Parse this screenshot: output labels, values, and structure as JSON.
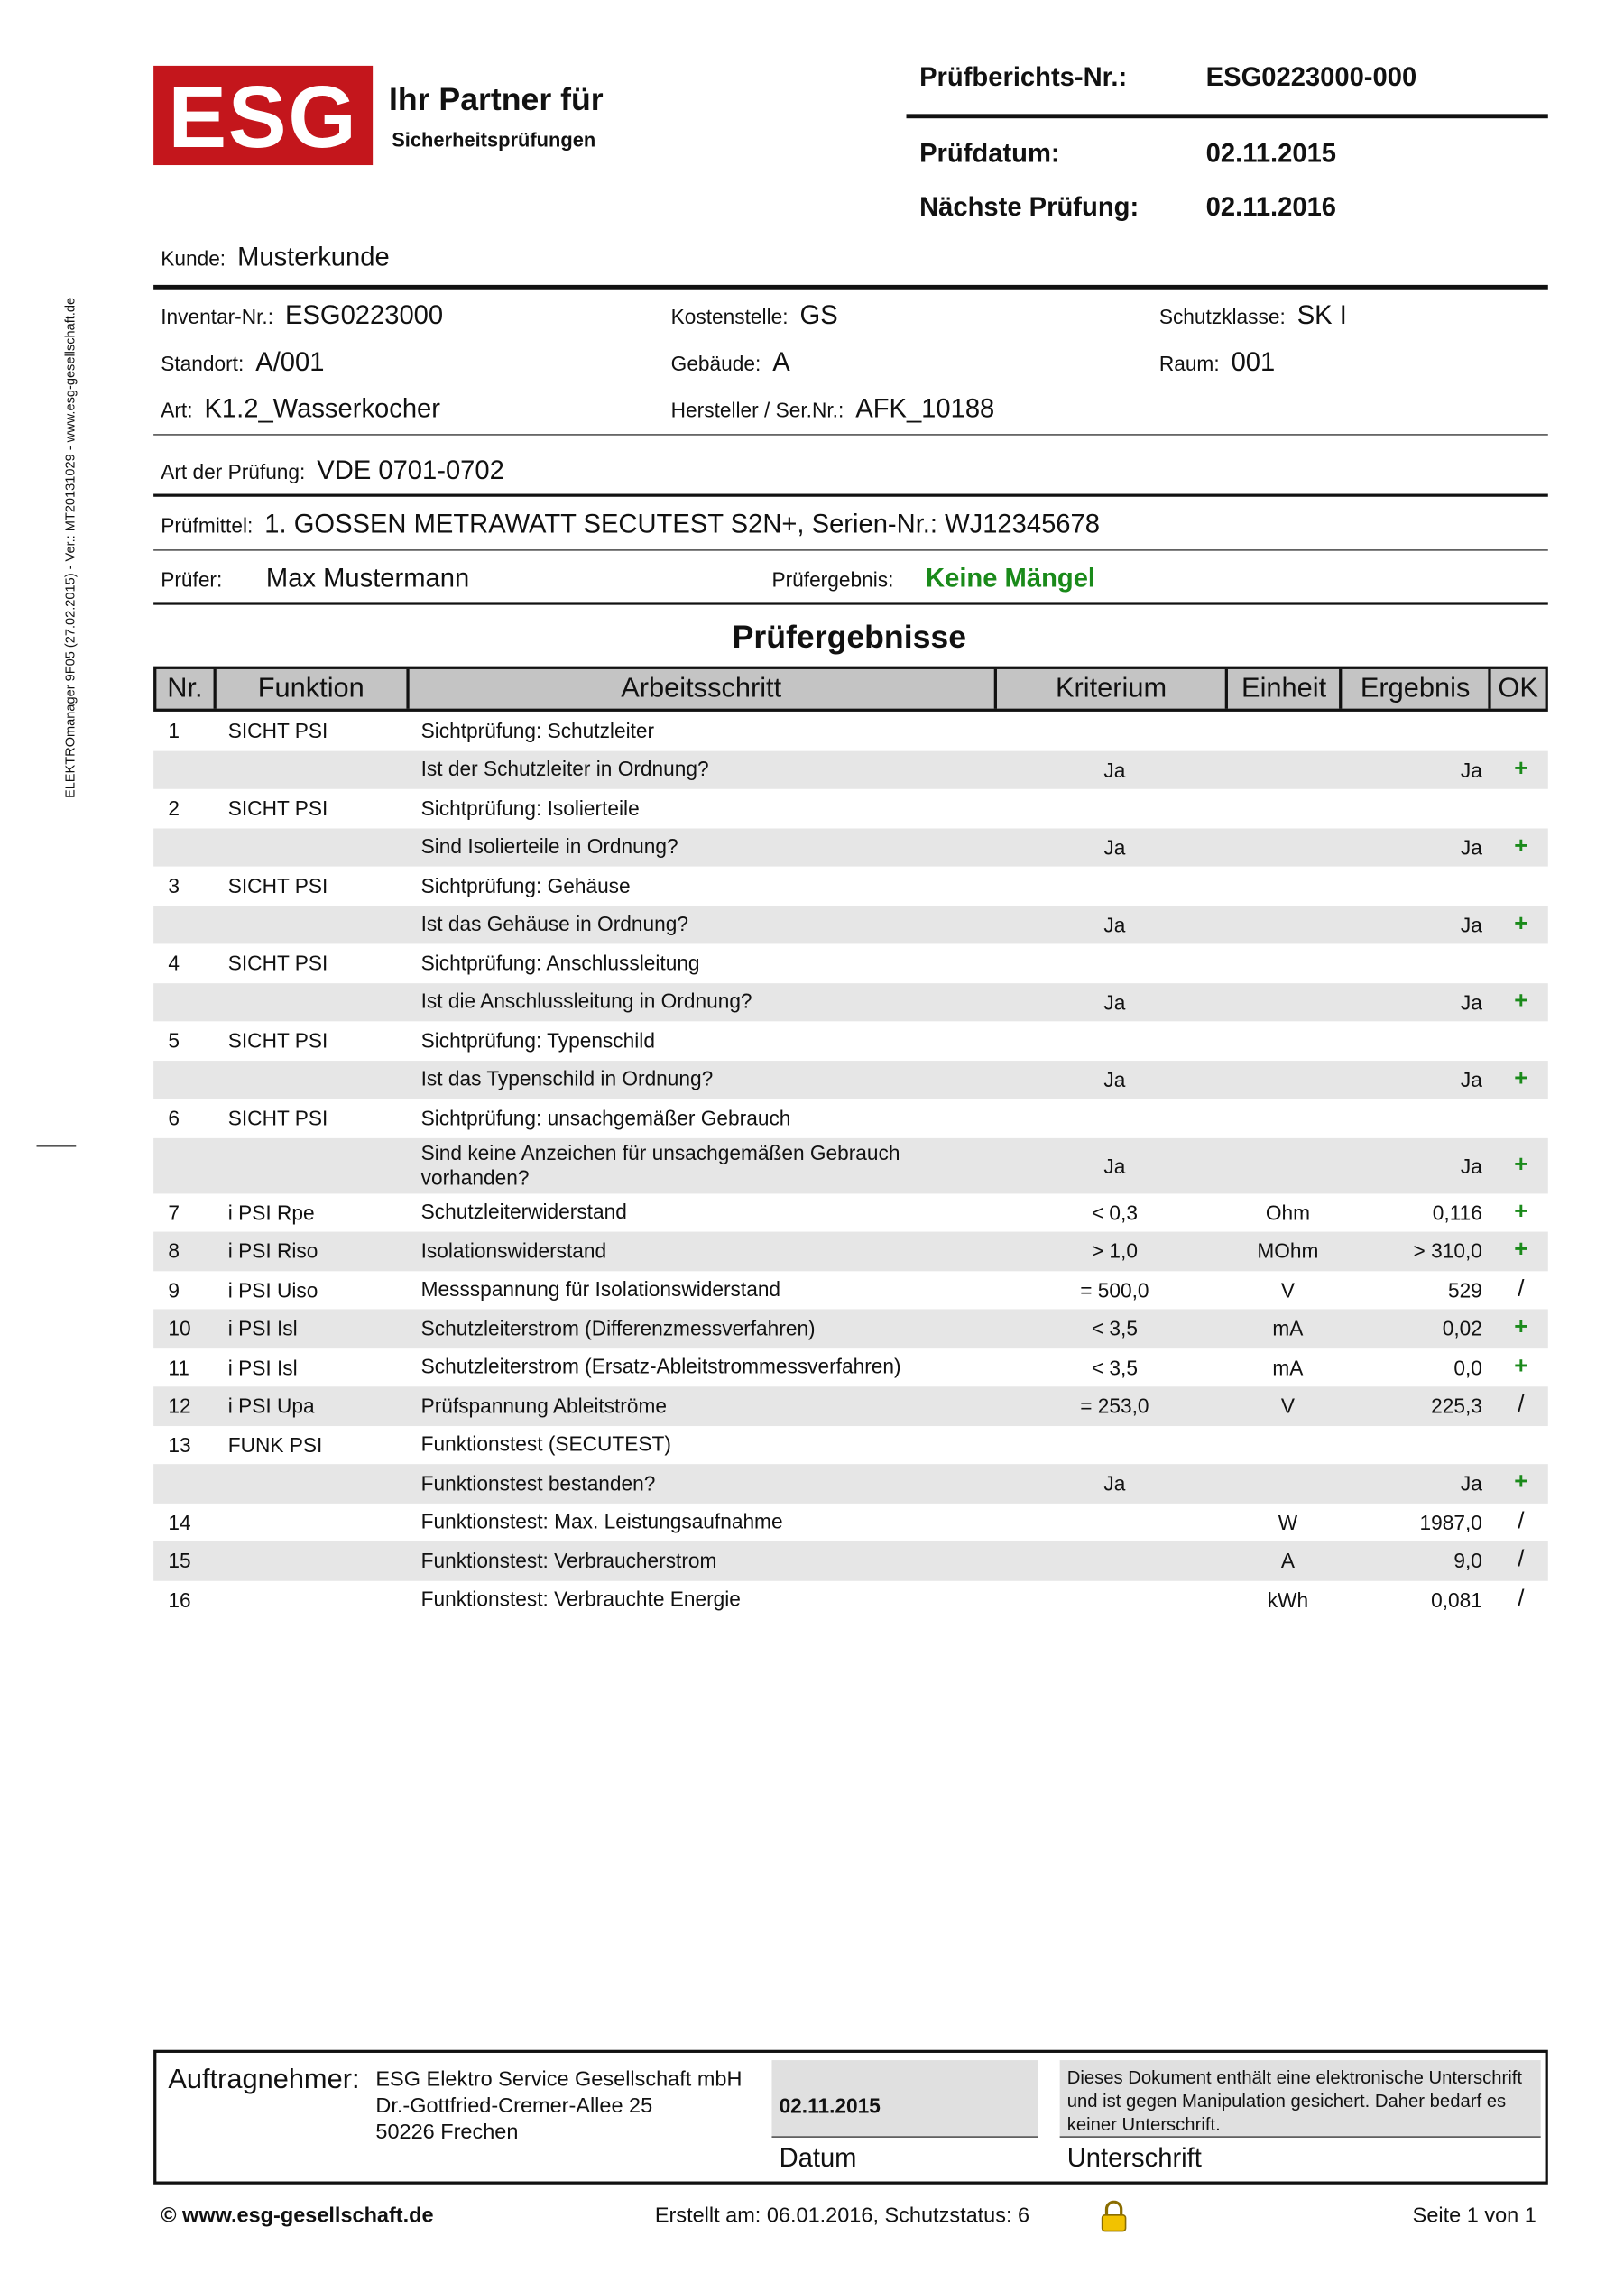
{
  "logo": {
    "mark": "ESG",
    "line1": "Ihr Partner für",
    "line2": "Sicherheitsprüfungen"
  },
  "report": [
    {
      "label": "Prüfberichts-Nr.:",
      "value": "ESG0223000-000"
    },
    {
      "label": "Prüfdatum:",
      "value": "02.11.2015"
    },
    {
      "label": "Nächste Prüfung:",
      "value": "02.11.2016"
    }
  ],
  "side_text": "ELEKTROmanager 9F05 (27.02.2015) - Ver.: MT20131029 - www.esg-gesellschaft.de",
  "fields": [
    {
      "label": "Kunde:",
      "value": "Musterkunde"
    },
    {
      "label": "Inventar-Nr.:",
      "value": "ESG0223000"
    },
    {
      "label": "Kostenstelle:",
      "value": "GS"
    },
    {
      "label": "Schutzklasse:",
      "value": "SK I"
    },
    {
      "label": "Standort:",
      "value": "A/001"
    },
    {
      "label": "Gebäude:",
      "value": "A"
    },
    {
      "label": "Raum:",
      "value": "001"
    },
    {
      "label": "Art:",
      "value": "K1.2_Wasserkocher"
    },
    {
      "label": "Hersteller / Ser.Nr.:",
      "value": "AFK_10188"
    },
    {
      "label": "Art der Prüfung:",
      "value": "VDE 0701-0702"
    },
    {
      "label": "Prüfmittel:",
      "value": "1. GOSSEN METRAWATT SECUTEST S2N+, Serien-Nr.: WJ12345678"
    },
    {
      "label": "Prüfer:",
      "value": "Max Mustermann"
    },
    {
      "label": "Prüfergebnis:",
      "value": "Keine Mängel"
    }
  ],
  "table": {
    "title": "Prüfergebnisse",
    "headers": [
      "Nr.",
      "Funktion",
      "Arbeitsschritt",
      "Kriterium",
      "Einheit",
      "Ergebnis",
      "OK"
    ],
    "rows": [
      [
        "1",
        "SICHT PSI",
        "Sichtprüfung: Schutzleiter",
        null,
        null,
        null,
        null
      ],
      [
        null,
        null,
        "Ist der Schutzleiter in Ordnung?",
        "Ja",
        null,
        "Ja",
        "+"
      ],
      [
        "2",
        "SICHT PSI",
        "Sichtprüfung: Isolierteile",
        null,
        null,
        null,
        null
      ],
      [
        null,
        null,
        "Sind Isolierteile in Ordnung?",
        "Ja",
        null,
        "Ja",
        "+"
      ],
      [
        "3",
        "SICHT PSI",
        "Sichtprüfung: Gehäuse",
        null,
        null,
        null,
        null
      ],
      [
        null,
        null,
        "Ist das Gehäuse in Ordnung?",
        "Ja",
        null,
        "Ja",
        "+"
      ],
      [
        "4",
        "SICHT PSI",
        "Sichtprüfung: Anschlussleitung",
        null,
        null,
        null,
        null
      ],
      [
        null,
        null,
        "Ist die Anschlussleitung in Ordnung?",
        "Ja",
        null,
        "Ja",
        "+"
      ],
      [
        "5",
        "SICHT PSI",
        "Sichtprüfung: Typenschild",
        null,
        null,
        null,
        null
      ],
      [
        null,
        null,
        "Ist das Typenschild in Ordnung?",
        "Ja",
        null,
        "Ja",
        "+"
      ],
      [
        "6",
        "SICHT PSI",
        "Sichtprüfung: unsachgemäßer Gebrauch",
        null,
        null,
        null,
        null
      ],
      [
        null,
        null,
        "Sind keine Anzeichen für unsachgemäßen Gebrauch vorhanden?",
        "Ja",
        null,
        "Ja",
        "+"
      ],
      [
        "7",
        "i PSI Rpe",
        "Schutzleiterwiderstand",
        "< 0,3",
        "Ohm",
        "0,116",
        "+"
      ],
      [
        "8",
        "i PSI Riso",
        "Isolationswiderstand",
        "> 1,0",
        "MOhm",
        "> 310,0",
        "+"
      ],
      [
        "9",
        "i PSI Uiso",
        "Messspannung für Isolationswiderstand",
        "= 500,0",
        "V",
        "529",
        "/"
      ],
      [
        "10",
        "i PSI Isl",
        "Schutzleiterstrom (Differenzmessverfahren)",
        "< 3,5",
        "mA",
        "0,02",
        "+"
      ],
      [
        "11",
        "i PSI Isl",
        "Schutzleiterstrom (Ersatz-Ableitstrommessverfahren)",
        "< 3,5",
        "mA",
        "0,0",
        "+"
      ],
      [
        "12",
        "i PSI Upa",
        "Prüfspannung Ableitströme",
        "= 253,0",
        "V",
        "225,3",
        "/"
      ],
      [
        "13",
        "FUNK PSI",
        "Funktionstest (SECUTEST)",
        null,
        null,
        null,
        null
      ],
      [
        null,
        null,
        "Funktionstest bestanden?",
        "Ja",
        null,
        "Ja",
        "+"
      ],
      [
        "14",
        null,
        "Funktionstest: Max. Leistungsaufnahme",
        null,
        "W",
        "1987,0",
        "/"
      ],
      [
        "15",
        null,
        "Funktionstest: Verbraucherstrom",
        null,
        "A",
        "9,0",
        "/"
      ],
      [
        "16",
        null,
        "Funktionstest: Verbrauchte Energie",
        null,
        "kWh",
        "0,081",
        "/"
      ]
    ]
  },
  "footer": {
    "contractor_label": "Auftragnehmer:",
    "address": [
      "ESG Elektro Service Gesellschaft mbH",
      "Dr.-Gottfried-Cremer-Allee 25",
      "50226 Frechen"
    ],
    "date": "02.11.2015",
    "date_label": "Datum",
    "signature_note": "Dieses Dokument enthält eine elektronische Unterschrift und ist gegen Manipulation gesichert. Daher bedarf es keiner Unterschrift.",
    "signature_label": "Unterschrift"
  },
  "bottom": {
    "website": "© www.esg-gesellschaft.de",
    "created": "Erstellt am: 06.01.2016, Schutzstatus: 6",
    "page": "Seite 1 von 1"
  }
}
